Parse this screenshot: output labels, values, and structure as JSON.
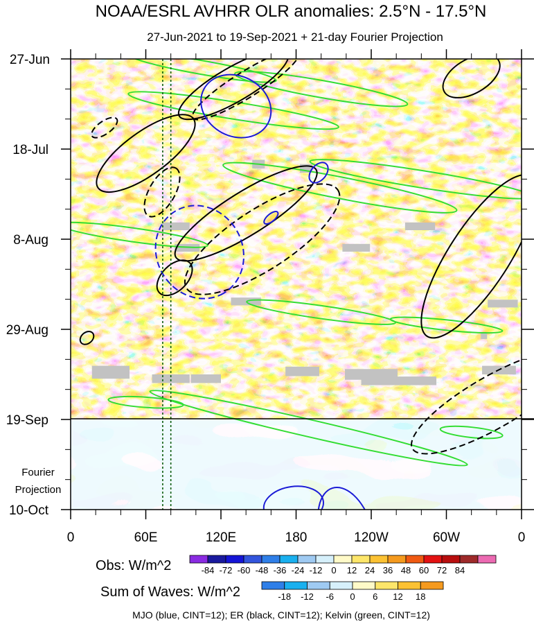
{
  "chart_data": {
    "type": "heatmap",
    "title": "NOAA/ESRL AVHRR OLR anomalies: 2.5°N - 17.5°N",
    "subtitle": "27-Jun-2021 to 19-Sep-2021 + 21-day Fourier Projection",
    "x_axis": {
      "ticks": [
        "0",
        "60E",
        "120E",
        "180",
        "120W",
        "60W",
        "0"
      ],
      "tick_lon": [
        0,
        60,
        120,
        180,
        240,
        300,
        360
      ],
      "range": [
        0,
        360
      ]
    },
    "y_axis": {
      "ticks": [
        "27-Jun",
        "18-Jul",
        "8-Aug",
        "29-Aug",
        "19-Sep",
        "10-Oct"
      ],
      "tick_day": [
        0,
        21,
        42,
        63,
        84,
        105
      ],
      "range_days": [
        0,
        105
      ],
      "observation_end": "19-Sep",
      "projection_label": "Fourier\nProjection"
    },
    "reference_lines_lon": [
      73.5,
      80
    ],
    "obs_colorbar": {
      "label": "Obs: W/m^2",
      "labels": [
        "-84",
        "-72",
        "-60",
        "-48",
        "-36",
        "-24",
        "-12",
        "0",
        "12",
        "24",
        "36",
        "48",
        "60",
        "72",
        "84"
      ],
      "colors": [
        "#8a2be2",
        "#1a1a9e",
        "#1515d6",
        "#3355dd",
        "#2f7fe8",
        "#1ab0ef",
        "#9fcaf2",
        "#d6f0fb",
        "#fffac8",
        "#fde66a",
        "#fcc233",
        "#f59a1e",
        "#f05a12",
        "#e31212",
        "#b80e0e",
        "#9e2a2a",
        "#ec6ab2"
      ]
    },
    "waves_colorbar": {
      "label": "Sum of Waves: W/m^2",
      "labels": [
        "-18",
        "-12",
        "-6",
        "0",
        "6",
        "12",
        "18"
      ],
      "colors": [
        "#2f7fe8",
        "#1ab0ef",
        "#9fcaf2",
        "#d6f0fb",
        "#fffac8",
        "#fde66a",
        "#fcc233",
        "#f59a1e"
      ]
    },
    "contour_legend": "MJO (blue, CINT=12); ER (black, CINT=12); Kelvin (green, CINT=12)",
    "contour_colors": {
      "mjo": "#1a1ad6",
      "er": "#000000",
      "kelvin": "#33dd33"
    },
    "contours": {
      "mjo": [
        {
          "lon": 132,
          "day": 11,
          "rx": 29,
          "ry": 7,
          "rot": 28,
          "dashed": false
        },
        {
          "lon": 103,
          "day": 45,
          "rx": 38,
          "ry": 10,
          "rot": 60,
          "dashed": true
        },
        {
          "lon": 178,
          "day": 104,
          "rx": 15,
          "ry": 7,
          "rot": 82,
          "dashed": false
        },
        {
          "lon": 220,
          "day": 110,
          "rx": 36,
          "ry": 6,
          "rot": 72,
          "dashed": false
        },
        {
          "lon": 198,
          "day": 26.5,
          "rx": 6,
          "ry": 2.7,
          "rot": 40,
          "dashed": false
        },
        {
          "lon": 160,
          "day": 37,
          "rx": 3,
          "ry": 2,
          "rot": 50,
          "dashed": false
        }
      ],
      "er": [
        {
          "lon": 130,
          "day": 6,
          "rx": 50,
          "ry": 4,
          "rot": -30,
          "dashed": false
        },
        {
          "lon": 140,
          "day": 6,
          "rx": 50,
          "ry": 3,
          "rot": -32,
          "dashed": true
        },
        {
          "lon": 60,
          "day": 22,
          "rx": 47,
          "ry": 5,
          "rot": -36,
          "dashed": false
        },
        {
          "lon": 140,
          "day": 36,
          "rx": 66,
          "ry": 5,
          "rot": -32,
          "dashed": false
        },
        {
          "lon": 153,
          "day": 42,
          "rx": 72,
          "ry": 7,
          "rot": -33,
          "dashed": true
        },
        {
          "lon": 326,
          "day": 46,
          "rx": 76,
          "ry": 7,
          "rot": -57,
          "dashed": false
        },
        {
          "lon": 73,
          "day": 31,
          "rx": 22,
          "ry": 3,
          "rot": -60,
          "dashed": true
        },
        {
          "lon": 83,
          "day": 51,
          "rx": 17,
          "ry": 3,
          "rot": -45,
          "dashed": false
        },
        {
          "lon": 337,
          "day": 80,
          "rx": 74,
          "ry": 6,
          "rot": -30,
          "dashed": true
        },
        {
          "lon": 320,
          "day": 4,
          "rx": 25,
          "ry": 4,
          "rot": -30,
          "dashed": false
        },
        {
          "lon": 27,
          "day": 16,
          "rx": 12,
          "ry": 1.5,
          "rot": -35,
          "dashed": true
        },
        {
          "lon": 13,
          "day": 65,
          "rx": 6,
          "ry": 1.3,
          "rot": -40,
          "dashed": false
        }
      ],
      "kelvin": [
        {
          "lon": 105,
          "day": 2,
          "rx": 60,
          "ry": 1.6,
          "rot": 10,
          "dashed": false
        },
        {
          "lon": 200,
          "day": 7,
          "rx": 70,
          "ry": 2,
          "rot": 10,
          "dashed": false
        },
        {
          "lon": 130,
          "day": 12,
          "rx": 85,
          "ry": 2,
          "rot": 9,
          "dashed": false
        },
        {
          "lon": 215,
          "day": 30,
          "rx": 95,
          "ry": 2.5,
          "rot": 11,
          "dashed": false
        },
        {
          "lon": 280,
          "day": 28,
          "rx": 90,
          "ry": 2,
          "rot": 9,
          "dashed": false
        },
        {
          "lon": 50,
          "day": 41,
          "rx": 60,
          "ry": 1.6,
          "rot": 8,
          "dashed": false
        },
        {
          "lon": 200,
          "day": 59,
          "rx": 60,
          "ry": 1.5,
          "rot": 8,
          "dashed": false
        },
        {
          "lon": 300,
          "day": 62,
          "rx": 45,
          "ry": 1.2,
          "rot": 6,
          "dashed": false
        },
        {
          "lon": 190,
          "day": 86,
          "rx": 130,
          "ry": 2,
          "rot": 13,
          "dashed": false
        },
        {
          "lon": 320,
          "day": 87,
          "rx": 25,
          "ry": 1.2,
          "rot": 6,
          "dashed": false
        },
        {
          "lon": 60,
          "day": 80,
          "rx": 30,
          "ry": 1.2,
          "rot": 4,
          "dashed": false
        }
      ]
    },
    "missing_data_blocks": [
      {
        "lon": 84,
        "day": 39,
        "w": 22,
        "h": 1.8
      },
      {
        "lon": 93,
        "day": 44,
        "w": 20,
        "h": 1.8
      },
      {
        "lon": 150,
        "day": 24.5,
        "w": 10,
        "h": 2
      },
      {
        "lon": 188,
        "day": 25.5,
        "w": 10,
        "h": 2
      },
      {
        "lon": 228,
        "day": 44,
        "w": 22,
        "h": 1.8
      },
      {
        "lon": 279,
        "day": 39,
        "w": 24,
        "h": 1.8
      },
      {
        "lon": 140,
        "day": 56.5,
        "w": 24,
        "h": 1.8
      },
      {
        "lon": 345,
        "day": 57,
        "w": 24,
        "h": 1.8
      },
      {
        "lon": 32,
        "day": 73,
        "w": 30,
        "h": 3
      },
      {
        "lon": 80,
        "day": 74.5,
        "w": 30,
        "h": 2
      },
      {
        "lon": 108,
        "day": 74.5,
        "w": 24,
        "h": 2
      },
      {
        "lon": 185,
        "day": 72.8,
        "w": 27,
        "h": 2.2
      },
      {
        "lon": 240,
        "day": 73.5,
        "w": 42,
        "h": 2.5
      },
      {
        "lon": 262,
        "day": 75,
        "w": 60,
        "h": 2
      },
      {
        "lon": 342,
        "day": 72.5,
        "w": 27,
        "h": 2
      },
      {
        "lon": 330,
        "day": 64.5,
        "w": 5,
        "h": 1.5
      }
    ]
  }
}
